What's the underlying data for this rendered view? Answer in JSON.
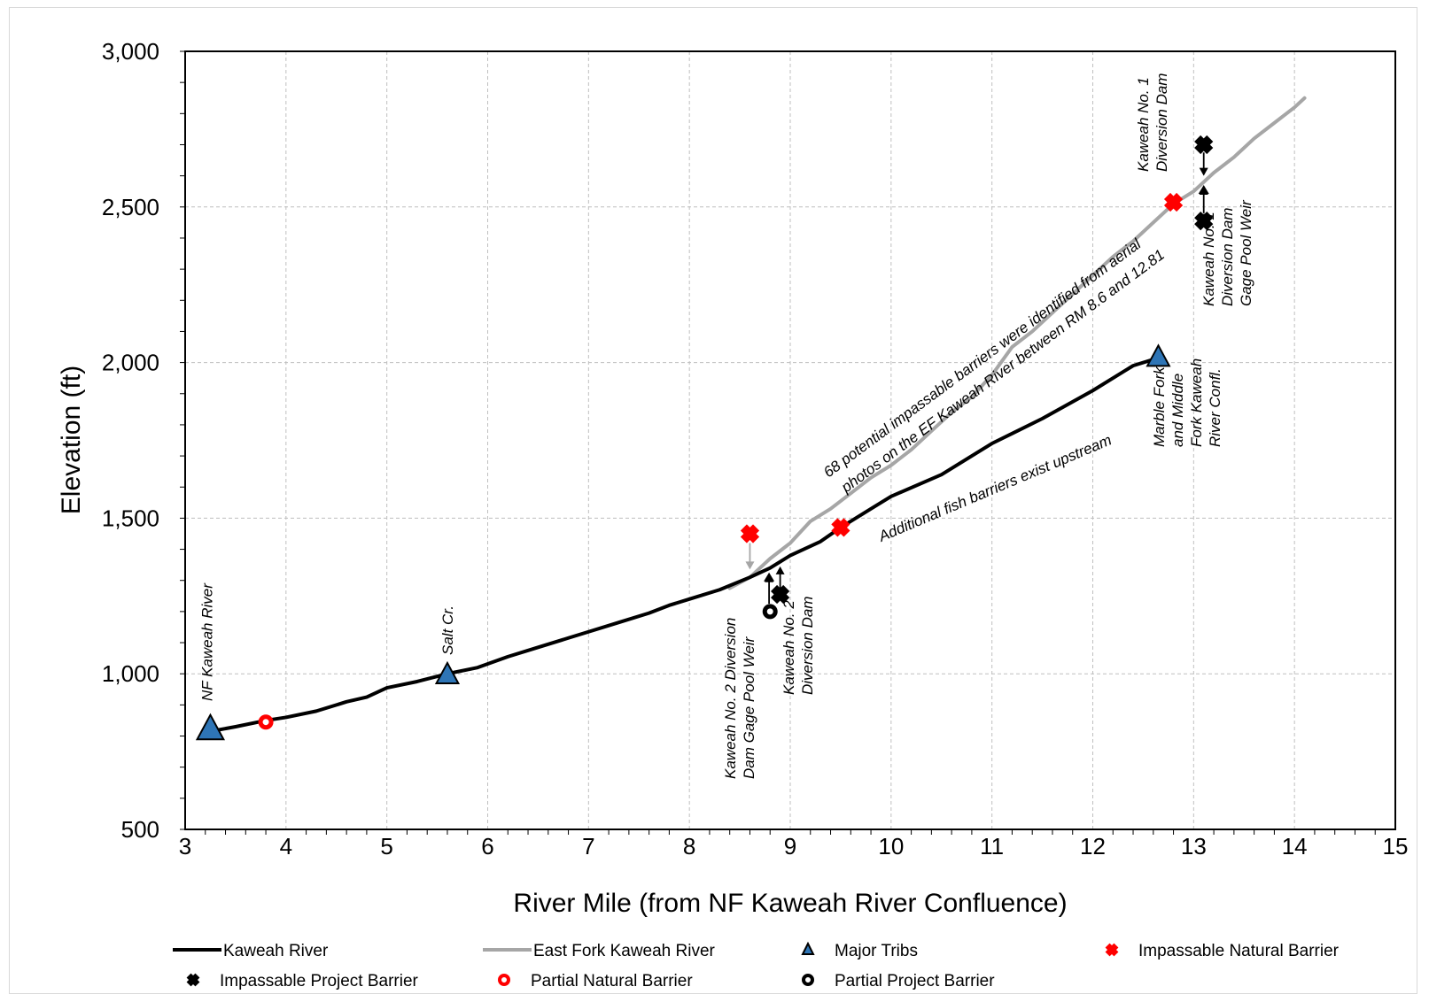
{
  "chart_data": {
    "type": "line",
    "xlabel": "River Mile (from NF Kaweah River Confluence)",
    "ylabel": "Elevation (ft)",
    "xlim": [
      3,
      15
    ],
    "ylim": [
      500,
      3000
    ],
    "x_ticks": [
      3,
      4,
      5,
      6,
      7,
      8,
      9,
      10,
      11,
      12,
      13,
      14,
      15
    ],
    "y_ticks": [
      500,
      1000,
      1500,
      2000,
      2500,
      3000
    ],
    "x_tick_labels": [
      "3",
      "4",
      "5",
      "6",
      "7",
      "8",
      "9",
      "10",
      "11",
      "12",
      "13",
      "14",
      "15"
    ],
    "y_tick_labels": [
      "500",
      "1,000",
      "1,500",
      "2,000",
      "2,500",
      "3,000"
    ],
    "grid": true,
    "legend_position": "bottom",
    "series": [
      {
        "name": "Kaweah River",
        "color": "#000000",
        "x": [
          3.25,
          3.5,
          3.8,
          4.0,
          4.3,
          4.6,
          4.8,
          5.0,
          5.3,
          5.6,
          5.9,
          6.2,
          6.5,
          6.8,
          7.0,
          7.3,
          7.6,
          7.8,
          8.0,
          8.3,
          8.6,
          8.8,
          9.0,
          9.3,
          9.5,
          9.8,
          10.0,
          10.5,
          11.0,
          11.5,
          12.0,
          12.4,
          12.65
        ],
        "y": [
          815,
          830,
          850,
          860,
          880,
          910,
          925,
          955,
          975,
          1000,
          1020,
          1055,
          1085,
          1115,
          1135,
          1165,
          1195,
          1220,
          1240,
          1270,
          1310,
          1340,
          1380,
          1425,
          1470,
          1530,
          1570,
          1640,
          1740,
          1820,
          1910,
          1990,
          2015
        ]
      },
      {
        "name": "East Fork Kaweah River",
        "color": "#a6a6a6",
        "x": [
          8.4,
          8.6,
          8.8,
          9.0,
          9.2,
          9.4,
          9.6,
          9.8,
          10.0,
          10.2,
          10.4,
          10.6,
          10.8,
          11.0,
          11.2,
          11.4,
          11.6,
          11.8,
          12.0,
          12.2,
          12.4,
          12.6,
          12.8,
          13.0,
          13.2,
          13.4,
          13.6,
          13.8,
          14.0,
          14.1
        ],
        "y": [
          1275,
          1310,
          1370,
          1420,
          1490,
          1530,
          1580,
          1630,
          1670,
          1720,
          1780,
          1840,
          1890,
          1960,
          2050,
          2100,
          2160,
          2220,
          2280,
          2340,
          2390,
          2450,
          2510,
          2550,
          2610,
          2660,
          2720,
          2770,
          2820,
          2850
        ]
      }
    ],
    "markers": {
      "major_tribs": {
        "name": "Major Tribs",
        "points": [
          {
            "x": 3.25,
            "y": 820
          },
          {
            "x": 5.6,
            "y": 995
          },
          {
            "x": 12.65,
            "y": 2015
          }
        ]
      },
      "impassable_natural_barrier": {
        "name": "Impassable Natural Barrier",
        "color": "#ff0000",
        "points": [
          {
            "x": 8.6,
            "y": 1450
          },
          {
            "x": 9.5,
            "y": 1470
          },
          {
            "x": 12.8,
            "y": 2515
          }
        ]
      },
      "impassable_project_barrier": {
        "name": "Impassable Project Barrier",
        "points": [
          {
            "x": 8.9,
            "y": 1255
          },
          {
            "x": 13.1,
            "y": 2700
          },
          {
            "x": 13.1,
            "y": 2455
          }
        ]
      },
      "partial_natural_barrier": {
        "name": "Partial Natural Barrier",
        "color": "#ff0000",
        "points": [
          {
            "x": 3.8,
            "y": 845
          }
        ]
      },
      "partial_project_barrier": {
        "name": "Partial Project Barrier",
        "points": [
          {
            "x": 8.8,
            "y": 1200
          }
        ]
      }
    },
    "annotations": {
      "nf_kaweah": "NF Kaweah River",
      "salt_cr": "Salt Cr.",
      "k2_weir_line1": "Kaweah No. 2 Diversion",
      "k2_weir_line2": "Dam Gage Pool Weir",
      "k2_dam_line1": "Kaweah No. 2",
      "k2_dam_line2": "Diversion Dam",
      "ef_barriers_line1": "68 potential impassable barriers were identified from aerial",
      "ef_barriers_line2": "photos on the EF Kaweah River between RM 8.6 and 12.81",
      "additional": "Additional fish barriers exist upstream",
      "marble_line1": "Marble Fork",
      "marble_line2": "and Middle",
      "marble_line3": "Fork Kaweah",
      "marble_line4": "River Confl.",
      "k1_dam_line1": "Kaweah No. 1",
      "k1_dam_line2": "Diversion Dam",
      "k1_weir_line1": "Kaweah No. 1",
      "k1_weir_line2": "Diversion Dam",
      "k1_weir_line3": "Gage Pool Weir"
    }
  }
}
